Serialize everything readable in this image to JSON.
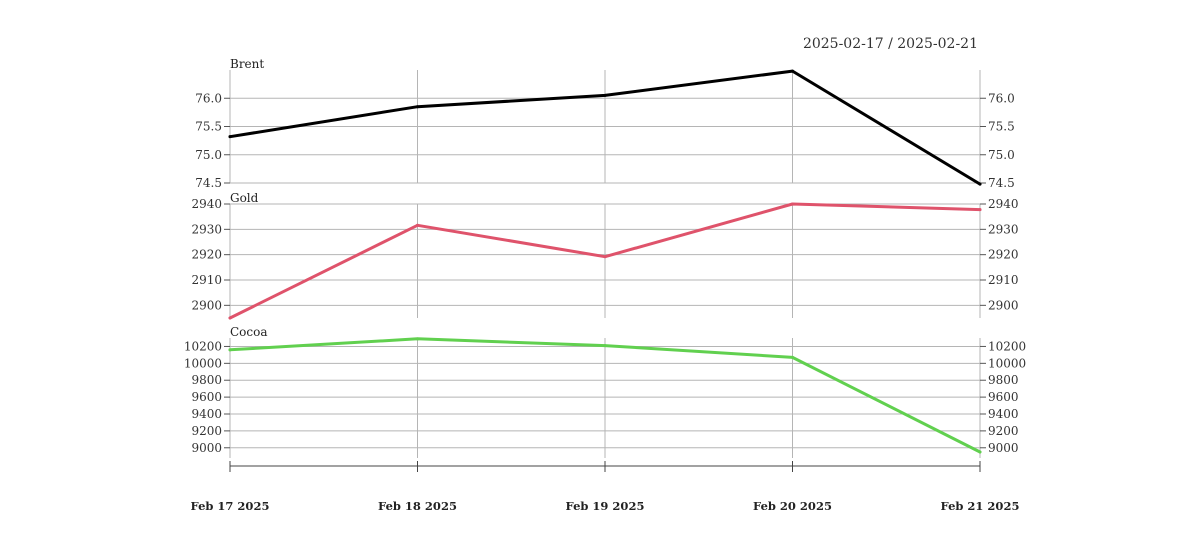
{
  "chart_data": {
    "type": "line",
    "date_range": "2025-02-17 / 2025-02-21",
    "categories": [
      "Feb 17 2025",
      "Feb 18 2025",
      "Feb 19 2025",
      "Feb 20 2025",
      "Feb 21 2025"
    ],
    "grid": true,
    "panels": [
      {
        "name": "Brent",
        "color": "#000000",
        "ylim": [
          74.5,
          76.5
        ],
        "yticks": [
          {
            "v": 74.5,
            "label": "74.5"
          },
          {
            "v": 75.0,
            "label": "75.0"
          },
          {
            "v": 75.5,
            "label": "75.5"
          },
          {
            "v": 76.0,
            "label": "76.0"
          }
        ],
        "values": [
          75.32,
          75.85,
          76.05,
          76.48,
          74.48
        ]
      },
      {
        "name": "Gold",
        "color": "#df536b",
        "ylim": [
          2895,
          2940
        ],
        "yticks": [
          {
            "v": 2900,
            "label": "2900"
          },
          {
            "v": 2910,
            "label": "2910"
          },
          {
            "v": 2920,
            "label": "2920"
          },
          {
            "v": 2930,
            "label": "2930"
          },
          {
            "v": 2940,
            "label": "2940"
          }
        ],
        "values": [
          2895,
          2931.6,
          2919.2,
          2940,
          2937.8
        ]
      },
      {
        "name": "Cocoa",
        "color": "#61d04f",
        "ylim": [
          8950,
          10300
        ],
        "yticks": [
          {
            "v": 9000,
            "label": "9000"
          },
          {
            "v": 9200,
            "label": "9200"
          },
          {
            "v": 9400,
            "label": "9400"
          },
          {
            "v": 9600,
            "label": "9600"
          },
          {
            "v": 9800,
            "label": "9800"
          },
          {
            "v": 10000,
            "label": "10000"
          },
          {
            "v": 10200,
            "label": "10200"
          }
        ],
        "values": [
          10160,
          10290,
          10210,
          10070,
          8950
        ]
      }
    ]
  }
}
